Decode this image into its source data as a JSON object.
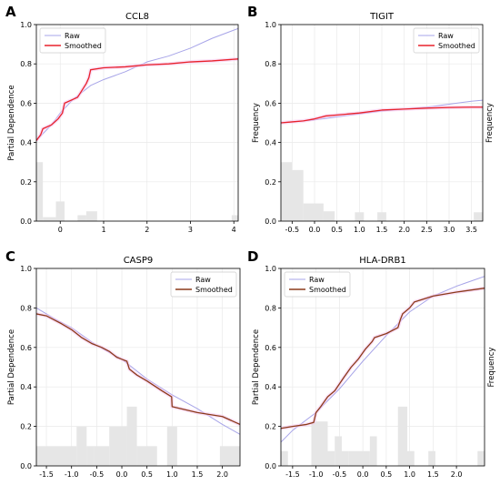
{
  "chart_data": [
    {
      "panel_letter": "A",
      "type": "line",
      "title": "CCL8",
      "xlabel": "",
      "ylabel": "Partial Dependence",
      "right_label": "",
      "legend_position": "top-left",
      "grid": true,
      "xlim": [
        -0.55,
        4.1
      ],
      "ylim": [
        0,
        1.0
      ],
      "xticks": [
        0,
        1,
        2,
        3,
        4
      ],
      "yticks": [
        0.0,
        0.2,
        0.4,
        0.6,
        0.8,
        1.0
      ],
      "series": [
        {
          "name": "Raw",
          "color": "#a7a4e8",
          "x": [
            -0.55,
            -0.2,
            0.0,
            0.3,
            0.7,
            1.0,
            1.5,
            2.0,
            2.5,
            3.0,
            3.5,
            4.1
          ],
          "y": [
            0.41,
            0.49,
            0.55,
            0.62,
            0.69,
            0.72,
            0.76,
            0.81,
            0.84,
            0.88,
            0.93,
            0.98
          ]
        },
        {
          "name": "Smoothed",
          "color": "#e8222b",
          "x": [
            -0.55,
            -0.45,
            -0.4,
            -0.2,
            -0.05,
            0.05,
            0.1,
            0.4,
            0.6,
            0.66,
            0.7,
            1.0,
            1.5,
            2.0,
            2.5,
            3.0,
            3.5,
            4.1
          ],
          "y": [
            0.41,
            0.44,
            0.47,
            0.49,
            0.52,
            0.55,
            0.6,
            0.63,
            0.7,
            0.73,
            0.77,
            0.78,
            0.785,
            0.795,
            0.8,
            0.81,
            0.815,
            0.825
          ]
        }
      ],
      "histogram": {
        "color": "#e6e6e6",
        "bins": [
          [
            -0.55,
            -0.4,
            0.3
          ],
          [
            -0.4,
            -0.1,
            0.02
          ],
          [
            -0.1,
            0.1,
            0.1
          ],
          [
            0.4,
            0.6,
            0.03
          ],
          [
            0.6,
            0.85,
            0.05
          ],
          [
            3.95,
            4.1,
            0.03
          ]
        ]
      }
    },
    {
      "panel_letter": "B",
      "type": "line",
      "title": "TIGIT",
      "xlabel": "",
      "ylabel": "Frequency",
      "right_label": "Frequency",
      "legend_position": "top-right",
      "grid": true,
      "xlim": [
        -0.75,
        3.75
      ],
      "ylim": [
        0,
        1.0
      ],
      "xticks": [
        -0.5,
        0.0,
        0.5,
        1.0,
        1.5,
        2.0,
        2.5,
        3.0,
        3.5
      ],
      "yticks": [
        0.0,
        0.2,
        0.4,
        0.6,
        0.8,
        1.0
      ],
      "series": [
        {
          "name": "Raw",
          "color": "#a7a4e8",
          "x": [
            -0.75,
            -0.25,
            0.0,
            0.5,
            1.0,
            1.5,
            2.0,
            2.5,
            3.0,
            3.5,
            3.75
          ],
          "y": [
            0.5,
            0.51,
            0.515,
            0.53,
            0.545,
            0.56,
            0.57,
            0.58,
            0.595,
            0.61,
            0.615
          ]
        },
        {
          "name": "Smoothed",
          "color": "#e8222b",
          "x": [
            -0.75,
            -0.5,
            -0.25,
            0.0,
            0.25,
            0.5,
            1.0,
            1.5,
            2.0,
            2.5,
            3.0,
            3.5,
            3.75
          ],
          "y": [
            0.5,
            0.505,
            0.51,
            0.52,
            0.535,
            0.54,
            0.55,
            0.565,
            0.57,
            0.575,
            0.578,
            0.58,
            0.58
          ]
        }
      ],
      "histogram": {
        "color": "#e6e6e6",
        "bins": [
          [
            -0.75,
            -0.5,
            0.3
          ],
          [
            -0.5,
            -0.25,
            0.26
          ],
          [
            -0.25,
            0.0,
            0.09
          ],
          [
            0.0,
            0.2,
            0.09
          ],
          [
            0.2,
            0.45,
            0.05
          ],
          [
            0.9,
            1.1,
            0.045
          ],
          [
            1.4,
            1.6,
            0.045
          ],
          [
            3.55,
            3.75,
            0.045
          ]
        ]
      }
    },
    {
      "panel_letter": "C",
      "type": "line",
      "title": "CASP9",
      "xlabel": "",
      "ylabel": "Partial Dependence",
      "right_label": "",
      "legend_position": "top-right",
      "grid": true,
      "xlim": [
        -1.7,
        2.35
      ],
      "ylim": [
        0,
        1.0
      ],
      "xticks": [
        -1.5,
        -1.0,
        -0.5,
        0.0,
        0.5,
        1.0,
        1.5,
        2.0
      ],
      "yticks": [
        0.0,
        0.2,
        0.4,
        0.6,
        0.8,
        1.0
      ],
      "series": [
        {
          "name": "Raw",
          "color": "#a7a4e8",
          "x": [
            -1.7,
            -1.3,
            -1.0,
            -0.5,
            0.0,
            0.5,
            1.0,
            1.5,
            2.0,
            2.35
          ],
          "y": [
            0.8,
            0.74,
            0.7,
            0.61,
            0.54,
            0.44,
            0.36,
            0.29,
            0.21,
            0.16
          ]
        },
        {
          "name": "Smoothed",
          "color": "#8b3a1a",
          "x": [
            -1.7,
            -1.5,
            -1.35,
            -1.2,
            -1.0,
            -0.85,
            -0.8,
            -0.6,
            -0.4,
            -0.25,
            -0.15,
            -0.1,
            0.0,
            0.1,
            0.15,
            0.3,
            0.5,
            0.8,
            0.99,
            1.0,
            1.5,
            2.0,
            2.35
          ],
          "y": [
            0.77,
            0.76,
            0.74,
            0.72,
            0.69,
            0.66,
            0.65,
            0.62,
            0.6,
            0.58,
            0.56,
            0.55,
            0.54,
            0.53,
            0.49,
            0.46,
            0.43,
            0.38,
            0.35,
            0.3,
            0.27,
            0.25,
            0.21
          ]
        }
      ],
      "histogram": {
        "color": "#e6e6e6",
        "bins": [
          [
            -1.7,
            -0.9,
            0.1
          ],
          [
            -0.9,
            -0.7,
            0.2
          ],
          [
            -0.7,
            -0.55,
            0.1
          ],
          [
            -0.55,
            -0.25,
            0.1
          ],
          [
            -0.25,
            0.1,
            0.2
          ],
          [
            0.1,
            0.3,
            0.3
          ],
          [
            0.3,
            0.5,
            0.1
          ],
          [
            0.5,
            0.7,
            0.1
          ],
          [
            0.9,
            1.1,
            0.2
          ],
          [
            1.95,
            2.35,
            0.1
          ]
        ]
      }
    },
    {
      "panel_letter": "D",
      "type": "line",
      "title": "HLA-DRB1",
      "xlabel": "",
      "ylabel": "Partial Dependence",
      "right_label": "Frequency",
      "legend_position": "top-left",
      "grid": true,
      "xlim": [
        -1.75,
        2.6
      ],
      "ylim": [
        0,
        1.0
      ],
      "xticks": [
        -1.5,
        -1.0,
        -0.5,
        0.0,
        0.5,
        1.0,
        1.5,
        2.0
      ],
      "yticks": [
        0.0,
        0.2,
        0.4,
        0.6,
        0.8,
        1.0
      ],
      "series": [
        {
          "name": "Raw",
          "color": "#a7a4e8",
          "x": [
            -1.75,
            -1.5,
            -1.0,
            -0.5,
            0.0,
            0.5,
            1.0,
            1.5,
            2.0,
            2.6
          ],
          "y": [
            0.12,
            0.18,
            0.27,
            0.39,
            0.53,
            0.66,
            0.78,
            0.86,
            0.91,
            0.96
          ]
        },
        {
          "name": "Smoothed",
          "color": "#8b3a1a",
          "x": [
            -1.75,
            -1.5,
            -1.2,
            -1.05,
            -1.0,
            -0.9,
            -0.75,
            -0.6,
            -0.4,
            -0.25,
            -0.1,
            0.05,
            0.2,
            0.25,
            0.5,
            0.75,
            0.8,
            0.85,
            1.0,
            1.1,
            1.5,
            2.0,
            2.6
          ],
          "y": [
            0.19,
            0.2,
            0.21,
            0.22,
            0.27,
            0.3,
            0.35,
            0.38,
            0.45,
            0.5,
            0.54,
            0.59,
            0.63,
            0.65,
            0.67,
            0.7,
            0.74,
            0.77,
            0.8,
            0.83,
            0.86,
            0.88,
            0.9
          ]
        }
      ],
      "histogram": {
        "color": "#e6e6e6",
        "bins": [
          [
            -1.75,
            -1.6,
            0.075
          ],
          [
            -1.1,
            -0.75,
            0.225
          ],
          [
            -0.75,
            -0.6,
            0.075
          ],
          [
            -0.6,
            -0.45,
            0.15
          ],
          [
            -0.45,
            -0.3,
            0.075
          ],
          [
            -0.3,
            0.15,
            0.075
          ],
          [
            0.15,
            0.3,
            0.15
          ],
          [
            0.75,
            0.95,
            0.3
          ],
          [
            0.95,
            1.1,
            0.075
          ],
          [
            1.4,
            1.55,
            0.075
          ],
          [
            2.45,
            2.6,
            0.075
          ]
        ]
      }
    }
  ]
}
